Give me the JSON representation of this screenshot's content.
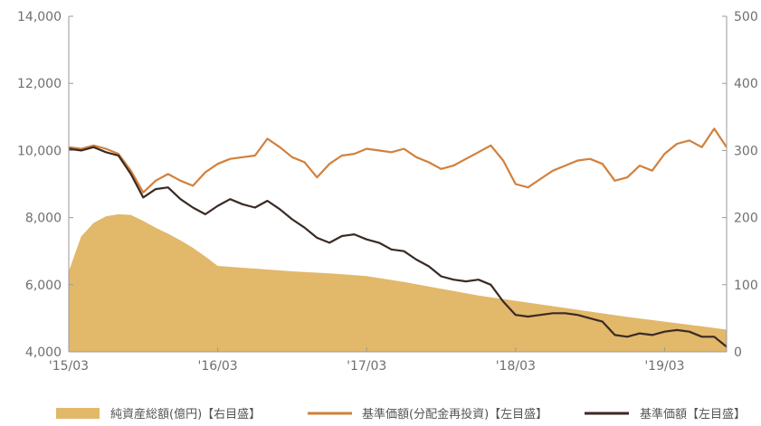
{
  "chart_data": {
    "type": "area",
    "x_tick_labels": [
      "'15/03",
      "'16/03",
      "'17/03",
      "'18/03",
      "'19/03"
    ],
    "x_tick_dates": [
      "2015-03",
      "2016-03",
      "2017-03",
      "2018-03",
      "2019-03"
    ],
    "x_range": [
      "2015-03",
      "2019-08"
    ],
    "left_axis": {
      "range": [
        4000,
        14000
      ],
      "ticks": [
        4000,
        6000,
        8000,
        10000,
        12000,
        14000
      ],
      "tick_labels": [
        "4,000",
        "6,000",
        "8,000",
        "10,000",
        "12,000",
        "14,000"
      ]
    },
    "right_axis": {
      "range": [
        0,
        500
      ],
      "ticks": [
        0,
        100,
        200,
        300,
        400,
        500
      ],
      "tick_labels": [
        "0",
        "100",
        "200",
        "300",
        "400",
        "500"
      ]
    },
    "grid": false,
    "legend_position": "bottom",
    "series": [
      {
        "name": "純資産総額(億円)【右目盛】",
        "kind": "area",
        "axis": "right",
        "color": "#e2b86a",
        "points": [
          [
            "2015-03",
            120
          ],
          [
            "2015-04",
            172
          ],
          [
            "2015-05",
            192
          ],
          [
            "2015-06",
            202
          ],
          [
            "2015-07",
            205
          ],
          [
            "2015-08",
            204
          ],
          [
            "2015-09",
            195
          ],
          [
            "2015-10",
            185
          ],
          [
            "2015-11",
            176
          ],
          [
            "2015-12",
            166
          ],
          [
            "2016-01",
            155
          ],
          [
            "2016-02",
            142
          ],
          [
            "2016-03",
            128
          ],
          [
            "2016-06",
            124
          ],
          [
            "2016-09",
            120
          ],
          [
            "2016-12",
            117
          ],
          [
            "2017-03",
            113
          ],
          [
            "2017-06",
            104
          ],
          [
            "2017-09",
            94
          ],
          [
            "2017-12",
            84
          ],
          [
            "2018-03",
            76
          ],
          [
            "2018-06",
            68
          ],
          [
            "2018-09",
            60
          ],
          [
            "2018-12",
            52
          ],
          [
            "2019-03",
            45
          ],
          [
            "2019-06",
            38
          ],
          [
            "2019-08",
            33
          ]
        ]
      },
      {
        "name": "基準価額(分配金再投資)【左目盛】",
        "kind": "line",
        "axis": "left",
        "color": "#d2803c",
        "points": [
          [
            "2015-03",
            10100
          ],
          [
            "2015-04",
            10050
          ],
          [
            "2015-05",
            10150
          ],
          [
            "2015-06",
            10050
          ],
          [
            "2015-07",
            9900
          ],
          [
            "2015-08",
            9400
          ],
          [
            "2015-09",
            8750
          ],
          [
            "2015-10",
            9100
          ],
          [
            "2015-11",
            9300
          ],
          [
            "2015-12",
            9100
          ],
          [
            "2016-01",
            8950
          ],
          [
            "2016-02",
            9350
          ],
          [
            "2016-03",
            9600
          ],
          [
            "2016-04",
            9750
          ],
          [
            "2016-05",
            9800
          ],
          [
            "2016-06",
            9850
          ],
          [
            "2016-07",
            10350
          ],
          [
            "2016-08",
            10100
          ],
          [
            "2016-09",
            9800
          ],
          [
            "2016-10",
            9650
          ],
          [
            "2016-11",
            9200
          ],
          [
            "2016-12",
            9600
          ],
          [
            "2017-01",
            9850
          ],
          [
            "2017-02",
            9900
          ],
          [
            "2017-03",
            10050
          ],
          [
            "2017-04",
            10000
          ],
          [
            "2017-05",
            9950
          ],
          [
            "2017-06",
            10050
          ],
          [
            "2017-07",
            9800
          ],
          [
            "2017-08",
            9650
          ],
          [
            "2017-09",
            9450
          ],
          [
            "2017-10",
            9550
          ],
          [
            "2017-11",
            9750
          ],
          [
            "2017-12",
            9950
          ],
          [
            "2018-01",
            10150
          ],
          [
            "2018-02",
            9700
          ],
          [
            "2018-03",
            9000
          ],
          [
            "2018-04",
            8900
          ],
          [
            "2018-05",
            9150
          ],
          [
            "2018-06",
            9400
          ],
          [
            "2018-07",
            9550
          ],
          [
            "2018-08",
            9700
          ],
          [
            "2018-09",
            9750
          ],
          [
            "2018-10",
            9600
          ],
          [
            "2018-11",
            9100
          ],
          [
            "2018-12",
            9200
          ],
          [
            "2019-01",
            9550
          ],
          [
            "2019-02",
            9400
          ],
          [
            "2019-03",
            9900
          ],
          [
            "2019-04",
            10200
          ],
          [
            "2019-05",
            10300
          ],
          [
            "2019-06",
            10100
          ],
          [
            "2019-07",
            10650
          ],
          [
            "2019-08",
            10100
          ]
        ]
      },
      {
        "name": "基準価額【左目盛】",
        "kind": "line",
        "axis": "left",
        "color": "#3a2a24",
        "points": [
          [
            "2015-03",
            10050
          ],
          [
            "2015-04",
            10000
          ],
          [
            "2015-05",
            10100
          ],
          [
            "2015-06",
            9950
          ],
          [
            "2015-07",
            9850
          ],
          [
            "2015-08",
            9300
          ],
          [
            "2015-09",
            8600
          ],
          [
            "2015-10",
            8850
          ],
          [
            "2015-11",
            8900
          ],
          [
            "2015-12",
            8550
          ],
          [
            "2016-01",
            8300
          ],
          [
            "2016-02",
            8100
          ],
          [
            "2016-03",
            8350
          ],
          [
            "2016-04",
            8550
          ],
          [
            "2016-05",
            8400
          ],
          [
            "2016-06",
            8300
          ],
          [
            "2016-07",
            8500
          ],
          [
            "2016-08",
            8250
          ],
          [
            "2016-09",
            7950
          ],
          [
            "2016-10",
            7700
          ],
          [
            "2016-11",
            7400
          ],
          [
            "2016-12",
            7250
          ],
          [
            "2017-01",
            7450
          ],
          [
            "2017-02",
            7500
          ],
          [
            "2017-03",
            7350
          ],
          [
            "2017-04",
            7250
          ],
          [
            "2017-05",
            7050
          ],
          [
            "2017-06",
            7000
          ],
          [
            "2017-07",
            6750
          ],
          [
            "2017-08",
            6550
          ],
          [
            "2017-09",
            6250
          ],
          [
            "2017-10",
            6150
          ],
          [
            "2017-11",
            6100
          ],
          [
            "2017-12",
            6150
          ],
          [
            "2018-01",
            6000
          ],
          [
            "2018-02",
            5500
          ],
          [
            "2018-03",
            5100
          ],
          [
            "2018-04",
            5050
          ],
          [
            "2018-05",
            5100
          ],
          [
            "2018-06",
            5150
          ],
          [
            "2018-07",
            5150
          ],
          [
            "2018-08",
            5100
          ],
          [
            "2018-09",
            5000
          ],
          [
            "2018-10",
            4900
          ],
          [
            "2018-11",
            4500
          ],
          [
            "2018-12",
            4450
          ],
          [
            "2019-01",
            4550
          ],
          [
            "2019-02",
            4500
          ],
          [
            "2019-03",
            4600
          ],
          [
            "2019-04",
            4650
          ],
          [
            "2019-05",
            4600
          ],
          [
            "2019-06",
            4450
          ],
          [
            "2019-07",
            4450
          ],
          [
            "2019-08",
            4150
          ]
        ]
      }
    ]
  }
}
